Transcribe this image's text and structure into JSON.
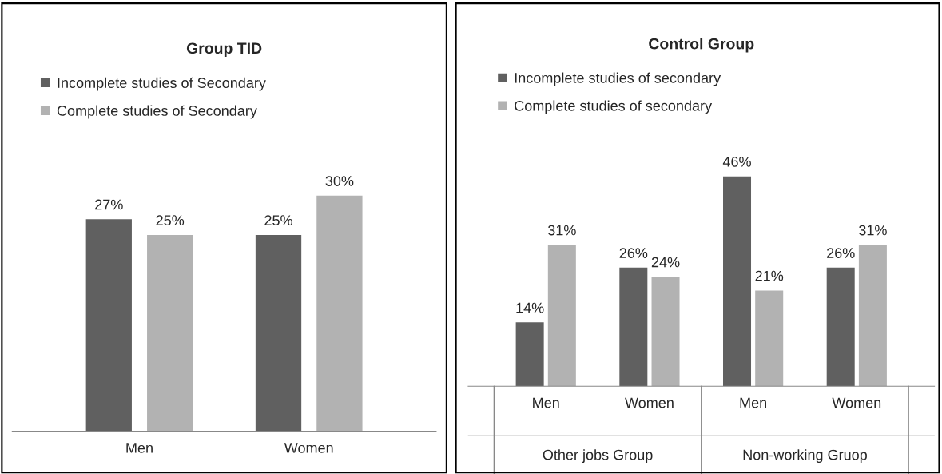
{
  "chart_data": [
    {
      "type": "bar",
      "title": "Group TID",
      "categories": [
        "Men",
        "Women"
      ],
      "legend": "top left",
      "marker": "square",
      "series": [
        {
          "name": "Incomplete studies of Secondary",
          "color": "#606060",
          "values": [
            27,
            25
          ],
          "value_labels": [
            "27%",
            "25%"
          ]
        },
        {
          "name": "Complete studies of Secondary",
          "color": "#b2b2b2",
          "values": [
            25,
            30
          ],
          "value_labels": [
            "25%",
            "30%"
          ]
        }
      ]
    },
    {
      "type": "bar",
      "title": "Control Group",
      "categories": [
        "Men",
        "Women",
        "Men",
        "Women"
      ],
      "legend": "top left",
      "marker": "square",
      "annotations": [
        "Other jobs Group",
        "Non-working Gruop"
      ],
      "series": [
        {
          "name": "Incomplete studies of secondary",
          "color": "#606060",
          "values": [
            14,
            26,
            46,
            26
          ],
          "value_labels": [
            "14%",
            "26%",
            "46%",
            "26%"
          ]
        },
        {
          "name": "Complete studies of secondary",
          "color": "#b2b2b2",
          "values": [
            31,
            24,
            21,
            31
          ],
          "value_labels": [
            "31%",
            "24%",
            "21%",
            "31%"
          ]
        }
      ]
    }
  ]
}
